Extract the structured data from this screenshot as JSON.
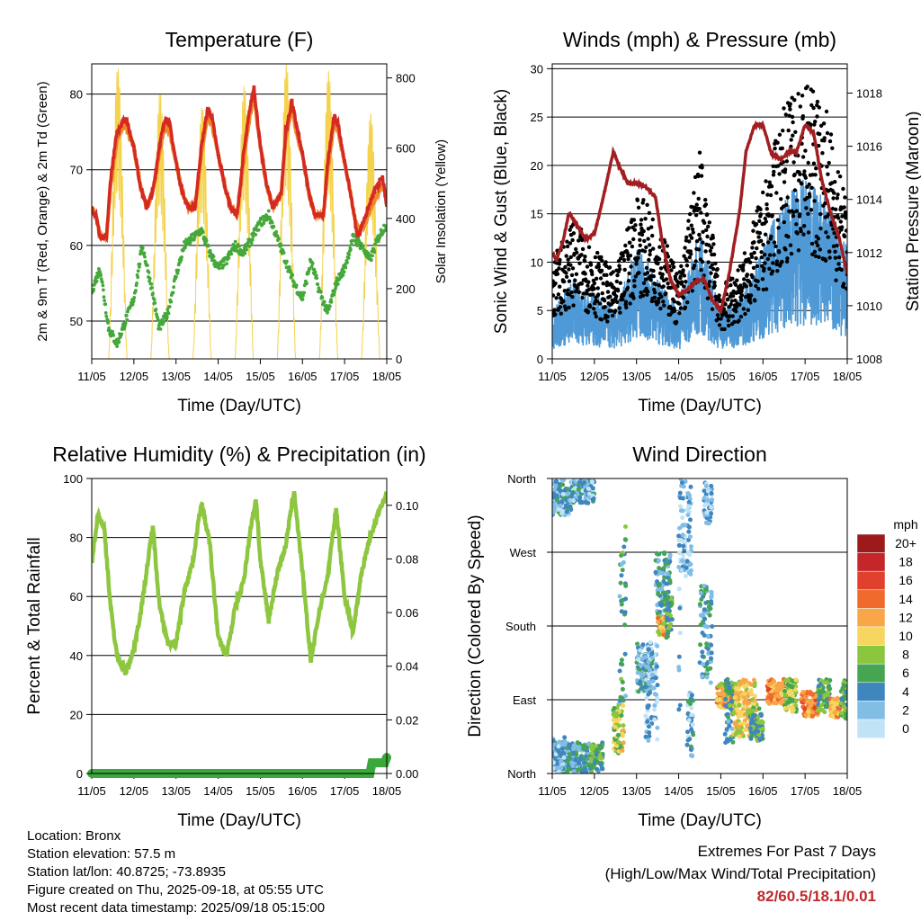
{
  "chart_data": [
    {
      "type": "line",
      "title": "Temperature (F)",
      "xlabel": "Time (Day/UTC)",
      "ylabel": "2m & 9m T (Red, Orange) & 2m Td (Green)",
      "ylabel_right": "Solar Insolation (Yellow)",
      "x_ticks": [
        "11/05",
        "12/05",
        "13/05",
        "14/05",
        "15/05",
        "16/05",
        "17/05",
        "18/05"
      ],
      "ylim": [
        45,
        84
      ],
      "y_ticks": [
        50,
        60,
        70,
        80
      ],
      "ylim_right": [
        0,
        840
      ],
      "y_ticks_right": [
        0,
        200,
        400,
        600,
        800
      ],
      "grid": "horizontal",
      "series": [
        {
          "color": "#d42a22",
          "axis": "left",
          "x_days": [
            0,
            0.1,
            0.2,
            0.35,
            0.45,
            0.6,
            0.8,
            1.0,
            1.15,
            1.3,
            1.45,
            1.6,
            1.75,
            1.85,
            2.0,
            2.15,
            2.3,
            2.45,
            2.6,
            2.75,
            2.85,
            3.0,
            3.15,
            3.3,
            3.45,
            3.6,
            3.75,
            3.85,
            4.0,
            4.15,
            4.3,
            4.5,
            4.6,
            4.75,
            4.85,
            5.0,
            5.15,
            5.3,
            5.5,
            5.6,
            5.75,
            5.85,
            6.0,
            6.2,
            6.3,
            6.5,
            6.7,
            6.9,
            7.0
          ],
          "values": [
            65,
            64,
            61,
            61,
            69,
            75,
            77,
            73,
            68,
            65,
            67,
            73,
            77,
            76,
            71,
            67,
            65,
            65,
            73,
            78,
            77,
            72,
            68,
            65,
            64,
            72,
            78,
            81,
            73,
            68,
            65,
            67,
            75,
            79,
            76,
            72,
            67,
            64,
            64,
            71,
            77,
            76,
            71,
            65,
            61,
            64,
            67,
            69,
            65
          ]
        },
        {
          "color": "#f0882a",
          "axis": "left",
          "x_days": [
            0,
            0.1,
            0.2,
            0.35,
            0.45,
            0.6,
            0.8,
            1.0,
            1.15,
            1.3,
            1.45,
            1.6,
            1.75,
            1.85,
            2.0,
            2.15,
            2.3,
            2.45,
            2.6,
            2.75,
            2.85,
            3.0,
            3.15,
            3.3,
            3.45,
            3.6,
            3.75,
            3.85,
            4.0,
            4.15,
            4.3,
            4.5,
            4.6,
            4.75,
            4.85,
            5.0,
            5.15,
            5.3,
            5.5,
            5.6,
            5.75,
            5.85,
            6.0,
            6.2,
            6.3,
            6.5,
            6.7,
            6.9,
            7.0
          ],
          "values": [
            65,
            64,
            61,
            61,
            68,
            74,
            76,
            73,
            68,
            65,
            67,
            72,
            76,
            75,
            71,
            67,
            65,
            65,
            72,
            77,
            76,
            72,
            68,
            65,
            64,
            71,
            77,
            80,
            73,
            68,
            65,
            67,
            74,
            78,
            75,
            72,
            67,
            64,
            64,
            70,
            76,
            75,
            71,
            65,
            62,
            63,
            66,
            68,
            66
          ]
        },
        {
          "color": "#44a83a",
          "axis": "left",
          "x_days": [
            0,
            0.2,
            0.4,
            0.6,
            0.8,
            1.0,
            1.2,
            1.4,
            1.6,
            1.8,
            2.0,
            2.2,
            2.4,
            2.6,
            2.8,
            3.0,
            3.2,
            3.4,
            3.6,
            3.8,
            4.0,
            4.2,
            4.4,
            4.6,
            4.8,
            5.0,
            5.2,
            5.4,
            5.6,
            5.8,
            6.0,
            6.2,
            6.4,
            6.6,
            6.8,
            7.0
          ],
          "values": [
            54,
            57,
            49,
            47,
            50,
            53,
            60,
            55,
            49,
            51,
            56,
            60,
            61,
            62,
            59,
            57,
            58,
            60,
            59,
            61,
            63,
            64,
            61,
            58,
            55,
            53,
            58,
            54,
            51,
            55,
            57,
            61,
            60,
            58,
            61,
            63
          ]
        },
        {
          "color": "#f4d24c",
          "axis": "right",
          "note": "solar insolation"
        }
      ]
    },
    {
      "type": "scatter",
      "title": "Winds (mph) & Pressure (mb)",
      "xlabel": "Time (Day/UTC)",
      "ylabel": "Sonic Wind & Gust (Blue, Black)",
      "ylabel_right": "Station Pressure (Maroon)",
      "x_ticks": [
        "11/05",
        "12/05",
        "13/05",
        "14/05",
        "15/05",
        "16/05",
        "17/05",
        "18/05"
      ],
      "ylim": [
        0,
        30.5
      ],
      "y_ticks": [
        0,
        5,
        10,
        15,
        20,
        25,
        30
      ],
      "ylim_right": [
        1008,
        1019.1
      ],
      "y_ticks_right": [
        1008,
        1010,
        1012,
        1014,
        1016,
        1018
      ],
      "grid": "horizontal",
      "series": [
        {
          "color": "#4f9ad6",
          "kind": "wind",
          "x_days": [
            0,
            0.5,
            1.0,
            1.5,
            2.0,
            2.5,
            3.0,
            3.5,
            4.0,
            4.5,
            5.0,
            5.5,
            6.0,
            6.5,
            7.0
          ],
          "values": [
            3,
            5,
            4,
            3,
            7,
            5,
            3,
            8,
            3,
            4,
            7,
            10,
            11,
            10,
            7
          ]
        },
        {
          "color": "#000000",
          "kind": "gust",
          "x_days": [
            0,
            0.5,
            1.0,
            1.5,
            2.0,
            2.5,
            3.0,
            3.5,
            4.0,
            4.5,
            5.0,
            5.5,
            6.0,
            6.5,
            7.0
          ],
          "values": [
            7,
            10,
            8,
            6,
            12,
            10,
            6,
            15,
            5,
            7,
            12,
            18,
            20,
            18,
            11
          ]
        },
        {
          "color": "#a11f22",
          "kind": "pressure",
          "axis": "right",
          "x_days": [
            0,
            0.1,
            0.25,
            0.4,
            0.6,
            0.8,
            1.0,
            1.2,
            1.45,
            1.6,
            1.8,
            2.0,
            2.2,
            2.45,
            2.6,
            2.8,
            3.0,
            3.2,
            3.4,
            3.6,
            3.8,
            4.0,
            4.2,
            4.45,
            4.6,
            4.8,
            5.0,
            5.2,
            5.45,
            5.6,
            5.8,
            6.0,
            6.2,
            6.4,
            6.6,
            6.8,
            7.0
          ],
          "values": [
            1012,
            1011.7,
            1012.4,
            1013.5,
            1013,
            1012.5,
            1012.7,
            1014,
            1015.8,
            1015.2,
            1014.6,
            1014.6,
            1014.5,
            1014.1,
            1012.5,
            1011,
            1010.4,
            1010.6,
            1010.9,
            1011,
            1010.2,
            1009.8,
            1011.2,
            1013.6,
            1015.8,
            1016.8,
            1016.8,
            1015.7,
            1015.5,
            1015.8,
            1015.8,
            1016.8,
            1016.5,
            1014.7,
            1013.5,
            1012.6,
            1011.2
          ]
        }
      ]
    },
    {
      "type": "line",
      "title": "Relative Humidity (%) & Precipitation (in)",
      "xlabel": "Time (Day/UTC)",
      "ylabel": "Percent & Total Rainfall",
      "x_ticks": [
        "11/05",
        "12/05",
        "13/05",
        "14/05",
        "15/05",
        "16/05",
        "17/05",
        "18/05"
      ],
      "ylim": [
        0,
        100
      ],
      "y_ticks": [
        0,
        20,
        40,
        60,
        80,
        100
      ],
      "ylim_right": [
        0,
        0.11
      ],
      "y_ticks_right": [
        "0.00",
        "0.02",
        "0.04",
        "0.06",
        "0.08",
        "0.10"
      ],
      "grid": "horizontal",
      "series": [
        {
          "color": "#8dc63f",
          "kind": "rh",
          "x_days": [
            0,
            0.15,
            0.3,
            0.45,
            0.6,
            0.8,
            1.0,
            1.2,
            1.45,
            1.6,
            1.8,
            2.0,
            2.2,
            2.4,
            2.6,
            2.8,
            3.0,
            3.2,
            3.4,
            3.6,
            3.8,
            3.9,
            4.0,
            4.2,
            4.4,
            4.6,
            4.8,
            5.0,
            5.2,
            5.4,
            5.6,
            5.8,
            6.0,
            6.2,
            6.4,
            6.6,
            6.8,
            7.0
          ],
          "values": [
            72,
            88,
            83,
            56,
            40,
            34,
            42,
            58,
            84,
            58,
            44,
            44,
            62,
            72,
            92,
            78,
            46,
            40,
            56,
            65,
            86,
            93,
            72,
            52,
            68,
            77,
            96,
            68,
            38,
            55,
            67,
            90,
            60,
            48,
            68,
            80,
            88,
            95
          ]
        },
        {
          "color": "#3aa83a",
          "kind": "precip",
          "axis": "right",
          "x_days": [
            0,
            6.6,
            6.65,
            6.95,
            7.0
          ],
          "values": [
            0,
            0,
            0.004,
            0.004,
            0.006
          ]
        }
      ]
    },
    {
      "type": "scatter",
      "title": "Wind Direction",
      "xlabel": "Time (Day/UTC)",
      "ylabel": "Direction (Colored By Speed)",
      "x_ticks": [
        "11/05",
        "12/05",
        "13/05",
        "14/05",
        "15/05",
        "16/05",
        "17/05",
        "18/05"
      ],
      "y_ticks": [
        "North",
        "East",
        "South",
        "West",
        "North"
      ],
      "ylim": [
        0,
        360
      ],
      "grid": "horizontal",
      "legend": {
        "title": "mph",
        "placement": "right",
        "labels": [
          "20+",
          "18",
          "16",
          "14",
          "12",
          "10",
          "8",
          "6",
          "4",
          "2",
          "0"
        ],
        "colors": [
          "#9c1a1c",
          "#c4262a",
          "#e1402c",
          "#f06a2e",
          "#f9a648",
          "#f6d65e",
          "#8cc63f",
          "#45a552",
          "#3f86bf",
          "#82bde6",
          "#c1e3f6"
        ]
      }
    }
  ],
  "footer": {
    "location": "Location: Bronx",
    "elevation": "Station elevation: 57.5 m",
    "latlon": "Station lat/lon: 40.8725; -73.8935",
    "created": "Figure created on Thu, 2025-09-18, at 05:55 UTC",
    "recent": "Most recent data timestamp: 2025/09/18 05:15:00"
  },
  "extremes": {
    "title": "Extremes For Past 7 Days",
    "subtitle": "(High/Low/Max Wind/Total Precipitation)",
    "values": "82/60.5/18.1/0.01"
  }
}
